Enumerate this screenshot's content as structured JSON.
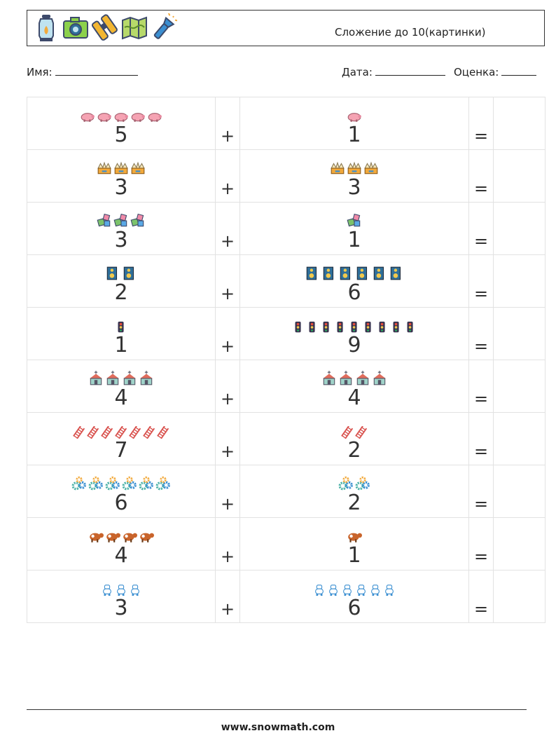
{
  "header": {
    "title": "Сложение до 10(картинки)",
    "icons": [
      "lantern-icon",
      "camera-icon",
      "binoculars-icon",
      "map-icon",
      "flashlight-icon"
    ]
  },
  "info": {
    "name_label": "Имя:",
    "date_label": "Дата:",
    "grade_label": "Оценка:"
  },
  "operators": {
    "plus": "+",
    "equals": "="
  },
  "rows": [
    {
      "a": "5",
      "b": "1",
      "icon": "pig-icon",
      "color": "#f5a3b3"
    },
    {
      "a": "3",
      "b": "3",
      "icon": "crown-box-icon",
      "color": "#f2a93b"
    },
    {
      "a": "3",
      "b": "1",
      "icon": "dice-icon",
      "color": "#7cc36b"
    },
    {
      "a": "2",
      "b": "6",
      "icon": "speaker-icon",
      "color": "#2f6f9a"
    },
    {
      "a": "1",
      "b": "9",
      "icon": "traffic-light-icon",
      "color": "#3a3550"
    },
    {
      "a": "4",
      "b": "4",
      "icon": "church-icon",
      "color": "#9fd3c9"
    },
    {
      "a": "7",
      "b": "2",
      "icon": "ladder-icon",
      "color": "#d9534f"
    },
    {
      "a": "6",
      "b": "2",
      "icon": "gears-icon",
      "color": "#4fb3a9"
    },
    {
      "a": "4",
      "b": "1",
      "icon": "cow-icon",
      "color": "#c9642b"
    },
    {
      "a": "3",
      "b": "6",
      "icon": "robot-icon",
      "color": "#3b8fd1"
    }
  ],
  "footer": {
    "url": "www.snowmath.com"
  }
}
